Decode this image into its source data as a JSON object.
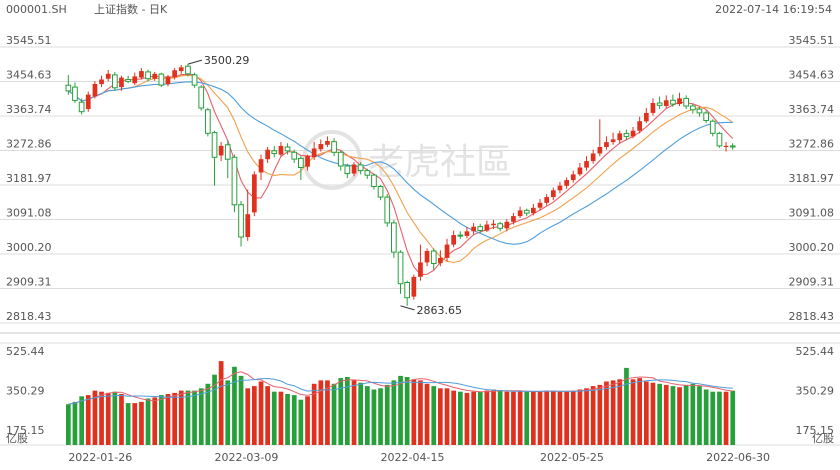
{
  "header": {
    "symbol": "000001.SH",
    "name": "上证指数 - 日K",
    "timestamp": "2022-07-14 16:19:54"
  },
  "watermark": "老虎社區",
  "colors": {
    "up": "#e0301e",
    "down": "#27a03b",
    "ma5": "#e9606b",
    "ma10": "#f2a14a",
    "ma20": "#4f9edd",
    "grid": "#dcdcdc",
    "volma1": "#e9606b",
    "volma2": "#4f9edd"
  },
  "chart_data": [
    {
      "type": "candlestick",
      "ylim": [
        2818.43,
        3545.51
      ],
      "y_ticks": [
        "3545.51",
        "3454.63",
        "3363.74",
        "3272.86",
        "3181.97",
        "3091.08",
        "3000.20",
        "2909.31",
        "2818.43"
      ],
      "x_ticks": [
        {
          "label": "2022-01-26",
          "i": 0
        },
        {
          "label": "2022-03-09",
          "i": 22
        },
        {
          "label": "2022-04-15",
          "i": 47
        },
        {
          "label": "2022-05-25",
          "i": 71
        },
        {
          "label": "2022-06-30",
          "i": 96
        }
      ],
      "annotations": [
        {
          "label": "3500.29",
          "i": 18,
          "value": 3500.29
        },
        {
          "label": "2863.65",
          "i": 50,
          "value": 2863.65
        }
      ],
      "candles": [
        [
          3445,
          3430,
          3472,
          3420
        ],
        [
          3440,
          3405,
          3452,
          3398
        ],
        [
          3400,
          3375,
          3410,
          3368
        ],
        [
          3382,
          3420,
          3428,
          3375
        ],
        [
          3415,
          3448,
          3455,
          3410
        ],
        [
          3448,
          3460,
          3470,
          3440
        ],
        [
          3462,
          3475,
          3485,
          3455
        ],
        [
          3472,
          3438,
          3480,
          3432
        ],
        [
          3440,
          3465,
          3470,
          3430
        ],
        [
          3460,
          3455,
          3470,
          3450
        ],
        [
          3450,
          3468,
          3478,
          3445
        ],
        [
          3465,
          3482,
          3490,
          3460
        ],
        [
          3480,
          3462,
          3486,
          3455
        ],
        [
          3462,
          3475,
          3480,
          3456
        ],
        [
          3474,
          3445,
          3478,
          3440
        ],
        [
          3448,
          3468,
          3472,
          3442
        ],
        [
          3466,
          3484,
          3490,
          3460
        ],
        [
          3482,
          3492,
          3498,
          3475
        ],
        [
          3495,
          3475,
          3500.29,
          3468
        ],
        [
          3472,
          3445,
          3478,
          3438
        ],
        [
          3440,
          3385,
          3445,
          3378
        ],
        [
          3380,
          3318,
          3385,
          3310
        ],
        [
          3320,
          3255,
          3325,
          3180
        ],
        [
          3260,
          3285,
          3295,
          3245
        ],
        [
          3288,
          3250,
          3300,
          3200
        ],
        [
          3255,
          3130,
          3262,
          3110
        ],
        [
          3130,
          3045,
          3140,
          3020
        ],
        [
          3045,
          3105,
          3170,
          3035
        ],
        [
          3110,
          3210,
          3218,
          3100
        ],
        [
          3215,
          3250,
          3262,
          3195
        ],
        [
          3250,
          3275,
          3282,
          3240
        ],
        [
          3272,
          3265,
          3285,
          3255
        ],
        [
          3262,
          3285,
          3295,
          3258
        ],
        [
          3282,
          3272,
          3292,
          3262
        ],
        [
          3268,
          3250,
          3275,
          3240
        ],
        [
          3252,
          3228,
          3258,
          3195
        ],
        [
          3230,
          3258,
          3262,
          3220
        ],
        [
          3255,
          3278,
          3295,
          3248
        ],
        [
          3276,
          3290,
          3302,
          3270
        ],
        [
          3288,
          3298,
          3310,
          3282
        ],
        [
          3296,
          3268,
          3305,
          3258
        ],
        [
          3268,
          3232,
          3272,
          3220
        ],
        [
          3232,
          3212,
          3238,
          3200
        ],
        [
          3212,
          3236,
          3242,
          3205
        ],
        [
          3235,
          3220,
          3242,
          3210
        ],
        [
          3220,
          3208,
          3225,
          3198
        ],
        [
          3208,
          3178,
          3212,
          3170
        ],
        [
          3178,
          3150,
          3182,
          3142
        ],
        [
          3150,
          3082,
          3158,
          3072
        ],
        [
          3082,
          3005,
          3090,
          2990
        ],
        [
          3005,
          2922,
          3010,
          2895
        ],
        [
          2925,
          2885,
          2930,
          2863.65
        ],
        [
          2888,
          2940,
          2946,
          2880
        ],
        [
          2940,
          2978,
          3025,
          2930
        ],
        [
          2978,
          3008,
          3015,
          2968
        ],
        [
          3008,
          2975,
          3015,
          2958
        ],
        [
          2976,
          2990,
          3010,
          2968
        ],
        [
          2990,
          3025,
          3040,
          2980
        ],
        [
          3025,
          3050,
          3062,
          3018
        ],
        [
          3050,
          3048,
          3060,
          3040
        ],
        [
          3048,
          3060,
          3072,
          3042
        ],
        [
          3060,
          3072,
          3082,
          3052
        ],
        [
          3072,
          3062,
          3080,
          3055
        ],
        [
          3062,
          3078,
          3088,
          3058
        ],
        [
          3076,
          3080,
          3090,
          3066
        ],
        [
          3080,
          3068,
          3085,
          3060
        ],
        [
          3068,
          3085,
          3092,
          3060
        ],
        [
          3085,
          3100,
          3108,
          3078
        ],
        [
          3100,
          3115,
          3125,
          3095
        ],
        [
          3115,
          3108,
          3120,
          3100
        ],
        [
          3108,
          3122,
          3132,
          3102
        ],
        [
          3122,
          3135,
          3145,
          3115
        ],
        [
          3135,
          3150,
          3158,
          3128
        ],
        [
          3150,
          3168,
          3175,
          3142
        ],
        [
          3168,
          3180,
          3190,
          3160
        ],
        [
          3180,
          3195,
          3202,
          3172
        ],
        [
          3195,
          3210,
          3220,
          3188
        ],
        [
          3210,
          3228,
          3240,
          3205
        ],
        [
          3228,
          3245,
          3258,
          3220
        ],
        [
          3245,
          3265,
          3275,
          3238
        ],
        [
          3265,
          3282,
          3355,
          3258
        ],
        [
          3282,
          3295,
          3310,
          3275
        ],
        [
          3295,
          3302,
          3320,
          3288
        ],
        [
          3300,
          3318,
          3325,
          3292
        ],
        [
          3318,
          3310,
          3328,
          3300
        ],
        [
          3310,
          3325,
          3335,
          3305
        ],
        [
          3325,
          3350,
          3362,
          3318
        ],
        [
          3350,
          3372,
          3385,
          3345
        ],
        [
          3372,
          3398,
          3410,
          3365
        ],
        [
          3398,
          3392,
          3415,
          3382
        ],
        [
          3390,
          3405,
          3418,
          3385
        ],
        [
          3405,
          3395,
          3420,
          3388
        ],
        [
          3395,
          3410,
          3425,
          3390
        ],
        [
          3410,
          3390,
          3418,
          3382
        ],
        [
          3390,
          3380,
          3395,
          3370
        ],
        [
          3382,
          3372,
          3388,
          3362
        ],
        [
          3372,
          3352,
          3378,
          3345
        ],
        [
          3350,
          3318,
          3355,
          3310
        ],
        [
          3318,
          3285,
          3322,
          3280
        ],
        [
          3282,
          3285,
          3295,
          3270
        ],
        [
          3285,
          3282,
          3292,
          3275
        ]
      ]
    },
    {
      "type": "bar",
      "unit": "亿股",
      "ylim": [
        110,
        560
      ],
      "y_ticks": [
        "525.44",
        "350.29",
        "175.15"
      ],
      "unit_label_left": "亿股",
      "unit_label_right": "亿股",
      "volumes": [
        290,
        300,
        325,
        330,
        350,
        345,
        340,
        345,
        335,
        295,
        295,
        300,
        315,
        320,
        330,
        335,
        340,
        350,
        350,
        350,
        360,
        380,
        420,
        480,
        395,
        455,
        415,
        360,
        370,
        390,
        370,
        345,
        345,
        335,
        330,
        310,
        325,
        380,
        395,
        395,
        380,
        405,
        410,
        395,
        385,
        370,
        355,
        360,
        375,
        395,
        415,
        410,
        400,
        395,
        380,
        370,
        360,
        360,
        350,
        345,
        340,
        345,
        345,
        350,
        355,
        350,
        345,
        345,
        350,
        345,
        345,
        345,
        350,
        350,
        345,
        345,
        350,
        355,
        360,
        370,
        375,
        390,
        395,
        400,
        450,
        400,
        405,
        390,
        385,
        380,
        375,
        370,
        365,
        375,
        380,
        370,
        355,
        345,
        345,
        345,
        350
      ]
    }
  ]
}
